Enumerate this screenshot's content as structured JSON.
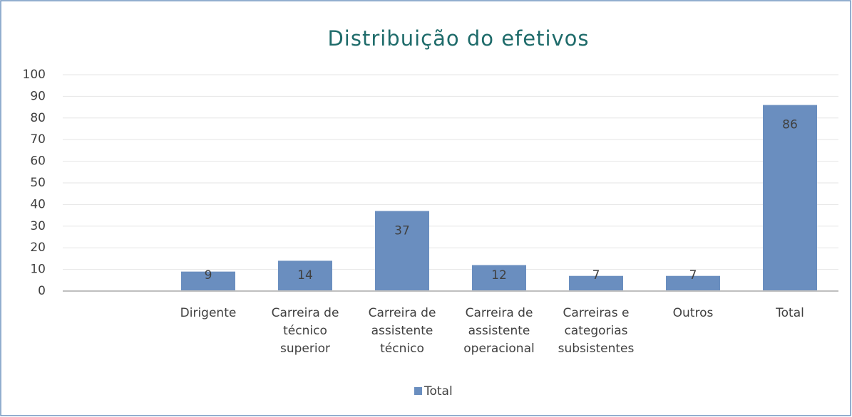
{
  "chart_data": {
    "type": "bar",
    "title": "Distribuição do efetivos",
    "categories": [
      null,
      "Dirigente",
      "Carreira de técnico superior",
      "Carreira de assistente técnico",
      "Carreira de assistente operacional",
      "Carreiras e categorias subsistentes",
      "Outros",
      "Total"
    ],
    "series": [
      {
        "name": "Total",
        "color": "#6a8ebf",
        "values": [
          null,
          9,
          14,
          37,
          12,
          7,
          7,
          86
        ]
      }
    ],
    "ylim": [
      0,
      100
    ],
    "yticks": [
      0,
      10,
      20,
      30,
      40,
      50,
      60,
      70,
      80,
      90,
      100
    ],
    "grid": true,
    "legend": "bottom"
  }
}
